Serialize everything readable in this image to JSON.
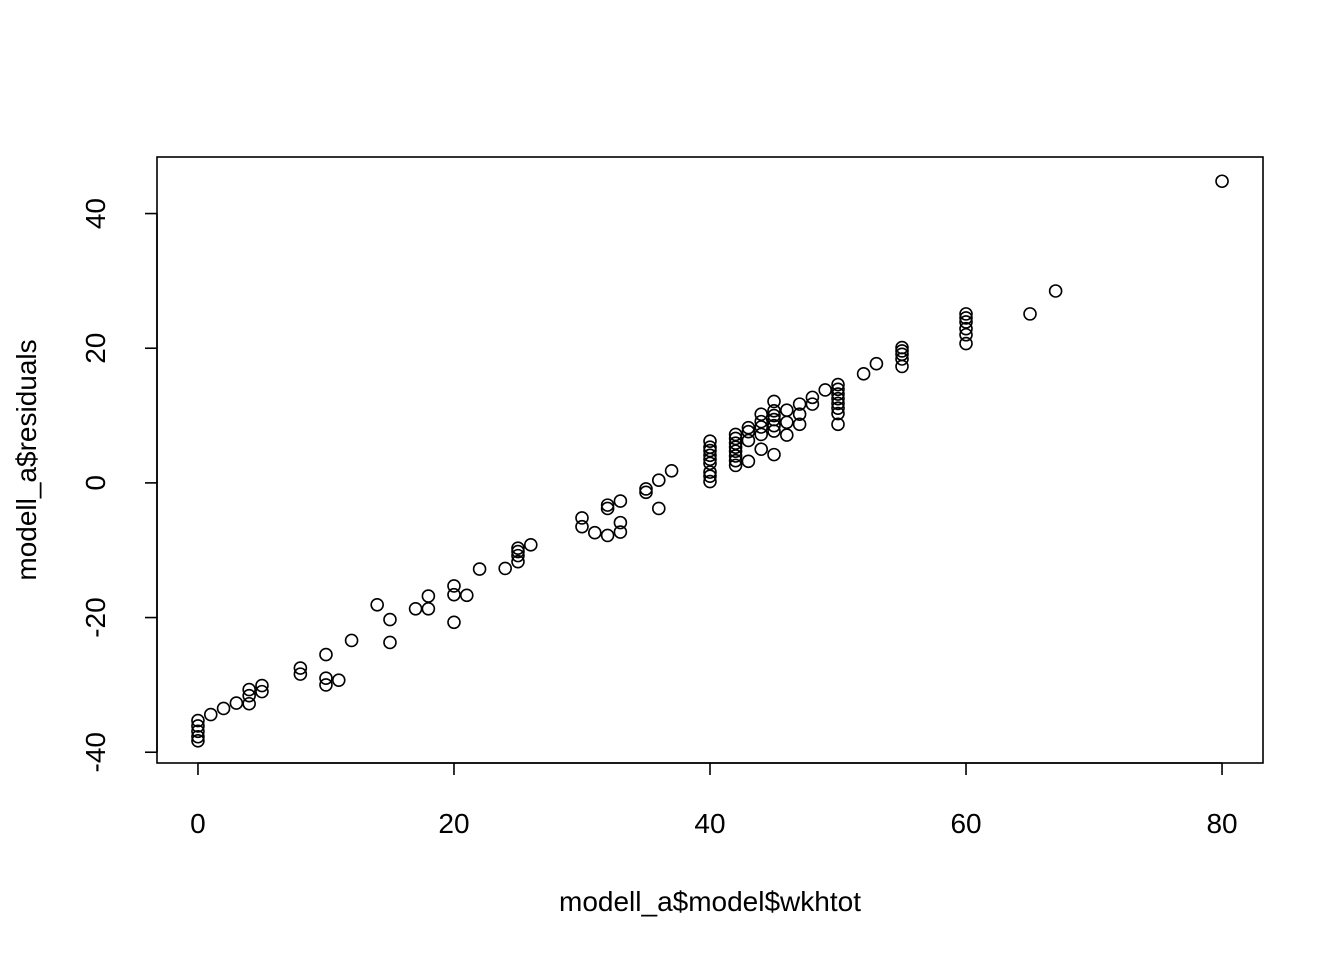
{
  "chart_data": {
    "type": "scatter",
    "title": "",
    "xlabel": "modell_a$model$wkhtot",
    "ylabel": "modell_a$residuals",
    "xlim": [
      -3.2,
      83.2
    ],
    "ylim": [
      -41.6,
      48.4
    ],
    "xticks": [
      0,
      20,
      40,
      60,
      80
    ],
    "yticks": [
      -40,
      -20,
      0,
      20,
      40
    ],
    "grid": false,
    "legend": "none",
    "marker": "open-circle",
    "color": "#000000",
    "points": [
      [
        0,
        -35.3
      ],
      [
        0,
        -36.1
      ],
      [
        0,
        -36.9
      ],
      [
        0,
        -37.7
      ],
      [
        0,
        -38.3
      ],
      [
        1,
        -34.4
      ],
      [
        2,
        -33.5
      ],
      [
        3,
        -32.7
      ],
      [
        4,
        -32.8
      ],
      [
        4,
        -31.6
      ],
      [
        4,
        -30.7
      ],
      [
        5,
        -31.0
      ],
      [
        5,
        -30.1
      ],
      [
        8,
        -28.4
      ],
      [
        8,
        -27.5
      ],
      [
        10,
        -30.0
      ],
      [
        10,
        -29.0
      ],
      [
        10,
        -25.5
      ],
      [
        11,
        -29.3
      ],
      [
        12,
        -23.4
      ],
      [
        14,
        -18.1
      ],
      [
        15,
        -20.3
      ],
      [
        15,
        -23.7
      ],
      [
        17,
        -18.7
      ],
      [
        18,
        -18.7
      ],
      [
        18,
        -16.8
      ],
      [
        20,
        -15.3
      ],
      [
        20,
        -16.6
      ],
      [
        20,
        -20.7
      ],
      [
        21,
        -16.7
      ],
      [
        22,
        -12.8
      ],
      [
        24,
        -12.7
      ],
      [
        25,
        -11.7
      ],
      [
        25,
        -10.8
      ],
      [
        25,
        -10.2
      ],
      [
        25,
        -9.7
      ],
      [
        26,
        -9.2
      ],
      [
        30,
        -5.2
      ],
      [
        30,
        -6.5
      ],
      [
        31,
        -7.4
      ],
      [
        32,
        -7.8
      ],
      [
        32,
        -3.3
      ],
      [
        32,
        -3.8
      ],
      [
        33,
        -2.7
      ],
      [
        33,
        -5.9
      ],
      [
        33,
        -7.3
      ],
      [
        35,
        -1.4
      ],
      [
        35,
        -0.9
      ],
      [
        36,
        0.4
      ],
      [
        36,
        -3.8
      ],
      [
        37,
        1.8
      ],
      [
        40,
        0.2
      ],
      [
        40,
        1.0
      ],
      [
        40,
        1.6
      ],
      [
        40,
        2.9
      ],
      [
        40,
        3.5
      ],
      [
        40,
        4.1
      ],
      [
        40,
        4.8
      ],
      [
        40,
        5.3
      ],
      [
        40,
        6.2
      ],
      [
        42,
        2.6
      ],
      [
        42,
        3.3
      ],
      [
        42,
        4.0
      ],
      [
        42,
        4.7
      ],
      [
        42,
        5.3
      ],
      [
        42,
        5.9
      ],
      [
        42,
        6.6
      ],
      [
        42,
        7.2
      ],
      [
        43,
        3.2
      ],
      [
        43,
        6.3
      ],
      [
        43,
        7.6
      ],
      [
        43,
        8.2
      ],
      [
        44,
        5.0
      ],
      [
        44,
        7.2
      ],
      [
        44,
        8.3
      ],
      [
        44,
        9.1
      ],
      [
        44,
        10.2
      ],
      [
        45,
        4.2
      ],
      [
        45,
        7.7
      ],
      [
        45,
        8.5
      ],
      [
        45,
        9.4
      ],
      [
        45,
        10.0
      ],
      [
        45,
        10.7
      ],
      [
        45,
        12.1
      ],
      [
        46,
        7.1
      ],
      [
        46,
        9.0
      ],
      [
        46,
        10.8
      ],
      [
        47,
        8.7
      ],
      [
        47,
        10.2
      ],
      [
        47,
        11.7
      ],
      [
        48,
        11.7
      ],
      [
        48,
        12.7
      ],
      [
        49,
        13.8
      ],
      [
        50,
        8.7
      ],
      [
        50,
        10.3
      ],
      [
        50,
        11.1
      ],
      [
        50,
        11.8
      ],
      [
        50,
        12.5
      ],
      [
        50,
        13.2
      ],
      [
        50,
        13.9
      ],
      [
        50,
        14.6
      ],
      [
        52,
        16.2
      ],
      [
        53,
        17.7
      ],
      [
        55,
        17.3
      ],
      [
        55,
        18.4
      ],
      [
        55,
        19.1
      ],
      [
        55,
        19.6
      ],
      [
        55,
        20.1
      ],
      [
        60,
        20.7
      ],
      [
        60,
        22.0
      ],
      [
        60,
        22.9
      ],
      [
        60,
        23.9
      ],
      [
        60,
        24.5
      ],
      [
        60,
        25.1
      ],
      [
        65,
        25.1
      ],
      [
        67,
        28.5
      ],
      [
        80,
        44.8
      ]
    ]
  }
}
